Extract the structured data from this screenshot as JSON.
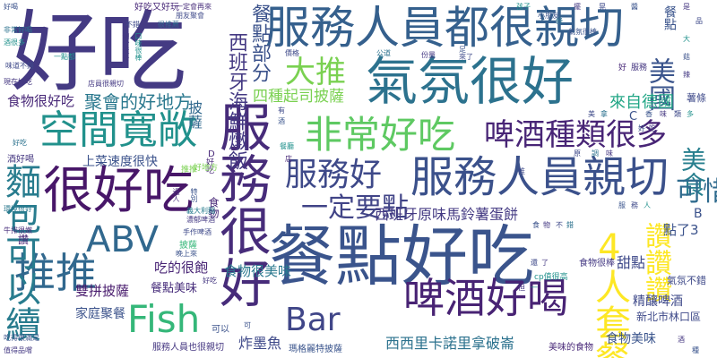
{
  "words": {
    "haochi": "好吃",
    "canDianHaoChi": "餐點好吃",
    "fuwuHenHao": "服務很好",
    "qifenHenHao": "氣氛很好",
    "fuwuRenyuanDouHenQinqie": "服務人員都很親切",
    "fuwuRenyuanQinqie": "服務人員親切",
    "henHaoChi": "很好吃",
    "pijiuHaoHe": "啤酒好喝",
    "tuituiA": "推推",
    "kongjianKuanchang": "空間寬敞",
    "feichangHaochi": "非常好吃",
    "pijiuZhongleiHenDuo": "啤酒種類很多",
    "fuwuHao": "服務好",
    "fish": "Fish",
    "abv": "ABV",
    "bar": "Bar",
    "mianbaoKeyiXu": "麵包可以續",
    "sirenTaocan": "4人套餐",
    "dacui": "大推",
    "meiguo": "美國",
    "zanzanzan": "讚讚讚",
    "yidingYaoDian": "一定要點",
    "xibanyaHaixianZhufan": "西班牙海鮮燉飯",
    "canDianBuFen": "餐點部分",
    "jujuDeHaoDifang": "聚會的好地方",
    "shipinHenHaoChi": "食物很好吃",
    "sizhongQisiPisa": "四種起司披薩",
    "laiziDeguo": "來自德國",
    "xibanyaYuanweiMalingshuDanbing": "西班牙原味馬鈴薯蛋餅",
    "shangcaiSuduHenKuai": "上菜速度很快",
    "shipinHenMeiwei": "食物很美味",
    "chiDeHenBao": "吃的很飽",
    "canDianMeiwei": "餐點美味",
    "shuangpinPisa": "雙拼披薩",
    "jiatingJucan": "家庭聚餐",
    "zhaMoyu": "炸墨魚",
    "xixiliKanuoliNapolun": "西西里卡諾里拿破崙",
    "fuwuRenyuanYeHenQinqie": "服務人員也很親切",
    "margheritaPisa": "瑪格麗特披薩",
    "keyi": "可以",
    "shipinMeiwei": "食物美味",
    "meiweiDeShipin": "美味的食物",
    "xinbeiShiLinkouQu": "新北市林口區",
    "jingniangPijiu": "精釀啤酒",
    "tiandian": "甜點",
    "dianle3": "點了3",
    "qifenBuCuo": "氣氛不錯",
    "shutiao": "薯條",
    "jiuHaoHe": "酒好喝",
    "pisa": "披薩",
    "tuituiB": "推推",
    "haoChiB": "好吃",
    "zan": "讚",
    "fuwu": "服務",
    "haoAlone": "好",
    "qifenHenBang": "氣氛很棒",
    "haoDifang": "好地方",
    "shipinHenBang": "食物很棒",
    "cpZhiHenGao": "cp值很高",
    "canDianB": "餐點",
    "shiwuB": "食物",
    "letterB": "B",
    "letterC": "C",
    "letterD": "D",
    "haochiD": "好吃",
    "haoYouHaowan": "好吃又好玩",
    "haoHe": "好喝",
    "feichangHaoHe": "非常好喝",
    "jiuHenDuo": "酒很多",
    "weidaoBuCuo": "味道不錯",
    "xianZaiHaoChi": "現在好吃",
    "meishi": "美食",
    "huanjingHenHao": "環境很好",
    "zhidePinchang": "值得品嚐",
    "chiDeHenManzu": "吃得很滿足",
    "yiDianDou": "一點都",
    "bucuo": "不錯",
    "hencongming": "很推薦",
    "yidingHuiZailai": "一定會再來",
    "pengyouJuhui": "朋友聚會",
    "shiheJucan": "適合聚餐",
    "kouweiBang": "口味很棒",
    "dianyuanHenQinqie": "店員很親切",
    "haochiE": "好吃",
    "niupaiHenNen": "牛排很嫩",
    "yiliMian": "義大利麵",
    "nongyuPijiu": "濃郁啤酒",
    "shouzuoPijiu": "手作啤酒",
    "wanshangLai": "晚上來",
    "guoren": "過人",
    "tebie": "特別",
    "kexi": "可惜",
    "lailiao": "來了",
    "haizi": "孩子",
    "xiaopeng": "小朋友",
    "jiage": "價格",
    "gongdao": "公道",
    "fenliang": "份量",
    "zu": "足",
    "canting": "餐廳",
    "dian": "店",
    "you": "有",
    "jiu": "酒",
    "dan": "但",
    "yi": "一",
    "hai": "還",
    "le": "了",
    "ke": "可",
    "huang": "晃",
    "tiaoA": "條",
    "bai": "擺",
    "jiang": "醬",
    "shiA": "是",
    "pinA": "品",
    "daA": "大",
    "guA": "菇",
    "laA": "辣",
    "meiA": "美",
    "naA": "拿",
    "xiangA": "香",
    "weiA": "味",
    "leiA": "類",
    "duoA": "多",
    "haoXiao": "好",
    "chiXiao": "吃",
    "yuan": "原",
    "tiaoB": "調",
    "wei2": "味",
    "fu": "服",
    "wu": "務",
    "ren": "人",
    "shiB": "食",
    "wuB": "物",
    "buzhiB": "不",
    "cuoB": "錯",
    "jiuB": "酒",
    "zhong": "種",
    "cuiA": "推"
  }
}
